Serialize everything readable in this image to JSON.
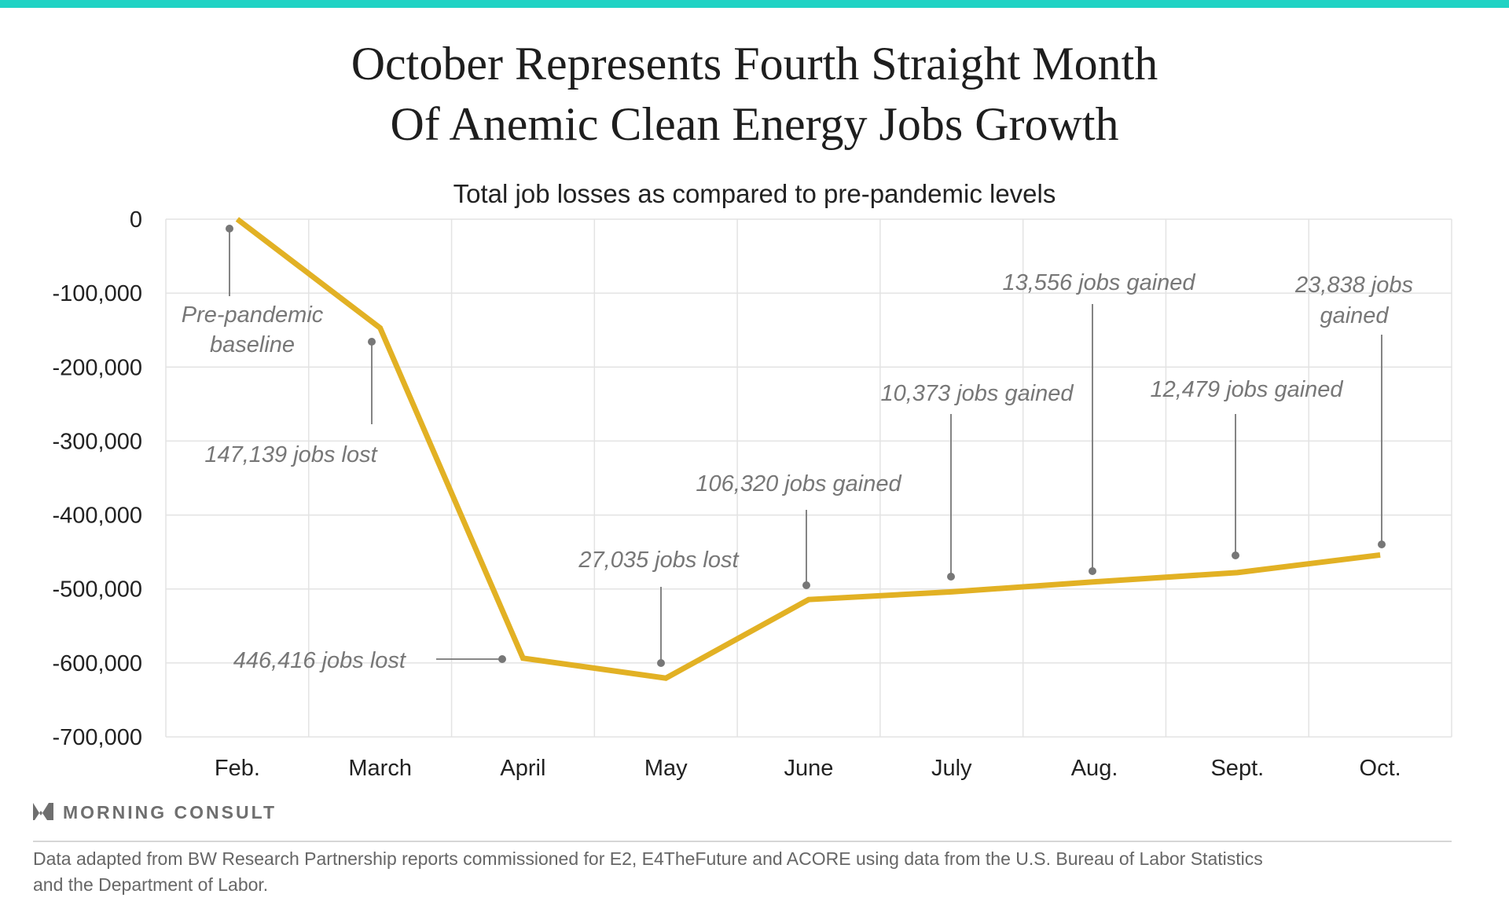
{
  "colors": {
    "top_bar": "#1fd3c4",
    "line": "#e2b124",
    "annotation": "#777777"
  },
  "chart_data": {
    "type": "line",
    "title": [
      "October Represents Fourth Straight Month",
      "Of Anemic Clean Energy Jobs Growth"
    ],
    "subtitle": "Total job losses as compared to pre-pandemic levels",
    "categories": [
      "Feb.",
      "March",
      "April",
      "May",
      "June",
      "July",
      "Aug.",
      "Sept.",
      "Oct."
    ],
    "values": [
      0,
      -147139,
      -593555,
      -620590,
      -514270,
      -503897,
      -490341,
      -477862,
      -454024
    ],
    "ylim": [
      -700000,
      0
    ],
    "yticks": [
      0,
      -100000,
      -200000,
      -300000,
      -400000,
      -500000,
      -600000,
      -700000
    ],
    "ytick_labels": [
      "0",
      "-100,000",
      "-200,000",
      "-300,000",
      "-400,000",
      "-500,000",
      "-600,000",
      "-700,000"
    ],
    "grid": true,
    "legend": "none",
    "annotations": [
      {
        "category": "Feb.",
        "text": [
          "Pre-pandemic",
          "baseline"
        ]
      },
      {
        "category": "March",
        "text": [
          "147,139 jobs lost"
        ]
      },
      {
        "category": "April",
        "text": [
          "446,416 jobs lost"
        ]
      },
      {
        "category": "May",
        "text": [
          "27,035 jobs lost"
        ]
      },
      {
        "category": "June",
        "text": [
          "106,320 jobs gained"
        ]
      },
      {
        "category": "July",
        "text": [
          "10,373 jobs gained"
        ]
      },
      {
        "category": "Aug.",
        "text": [
          "13,556 jobs gained"
        ]
      },
      {
        "category": "Sept.",
        "text": [
          "12,479 jobs gained"
        ]
      },
      {
        "category": "Oct.",
        "text": [
          "23,838 jobs",
          "gained"
        ]
      }
    ]
  },
  "logo": {
    "text": "MORNING CONSULT",
    "icon": "morning-consult-m-logo"
  },
  "footnote": [
    "Data adapted from BW Research Partnership reports commissioned for E2, E4TheFuture and ACORE using data from the U.S. Bureau of Labor Statistics",
    "and the Department of Labor."
  ]
}
